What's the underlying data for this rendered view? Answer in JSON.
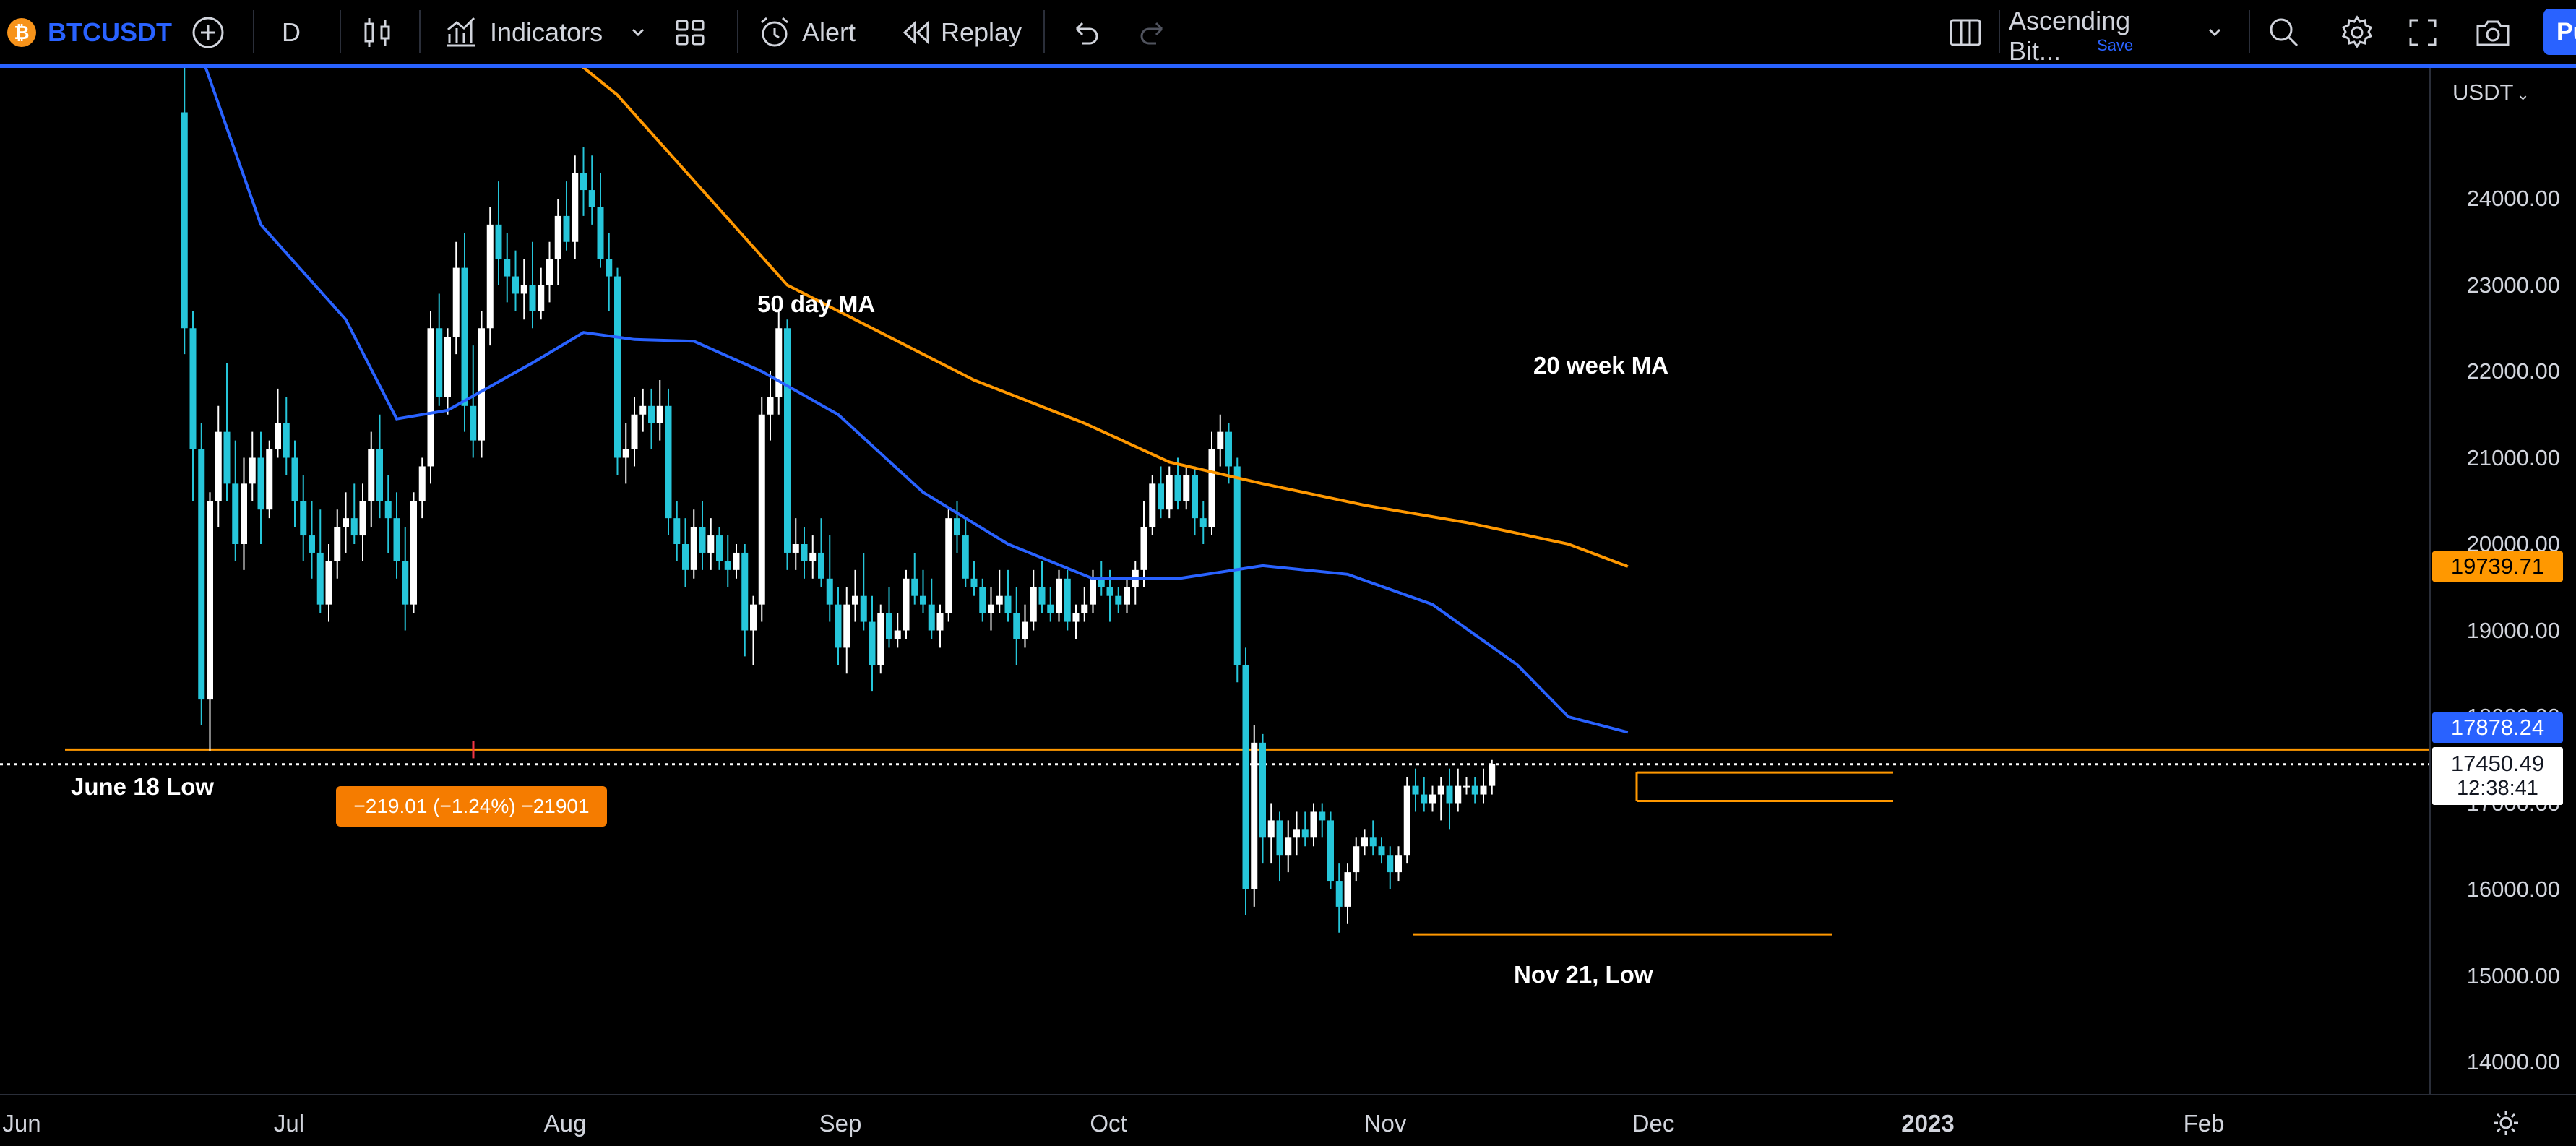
{
  "toolbar": {
    "symbol": "BTCUSDT",
    "interval": "D",
    "indicators_label": "Indicators",
    "alert_label": "Alert",
    "replay_label": "Replay",
    "layout_name": "Ascending Bit...",
    "layout_save": "Save",
    "publish_label": "Pu"
  },
  "price_axis": {
    "currency": "USDT",
    "labels": [
      "24000.00",
      "23000.00",
      "22000.00",
      "21000.00",
      "20000.00",
      "19000.00",
      "18000.00",
      "17000.00",
      "16000.00",
      "15000.00",
      "14000.00"
    ],
    "label_values": [
      24000,
      23000,
      22000,
      21000,
      20000,
      19000,
      18000,
      17000,
      16000,
      15000,
      14000
    ]
  },
  "badges": {
    "ma20_value": "19739.71",
    "ma50_value": "17878.24",
    "last_price": "17450.49",
    "countdown": "12:38:41"
  },
  "time_axis": {
    "labels": [
      "Jun",
      "Jul",
      "Aug",
      "Sep",
      "Oct",
      "Nov",
      "Dec",
      "2023",
      "Feb"
    ]
  },
  "annotations": {
    "ma50": "50 day MA",
    "ma20w": "20 week MA",
    "june_low": "June 18 Low",
    "nov_low": "Nov 21, Low",
    "measure": "−219.01 (−1.24%) −21901"
  },
  "colors": {
    "up": "#ffffff",
    "down": "#26c6da",
    "ma50": "#2962ff",
    "ma20w": "#ff9800",
    "accent": "#2962ff",
    "hline": "#ff9800"
  },
  "chart_data": {
    "type": "candlestick",
    "symbol": "BTCUSDT",
    "interval": "D",
    "ylim": [
      13600,
      25200
    ],
    "x_range": [
      "2022-06-01",
      "2023-02-28"
    ],
    "horizontal_levels": [
      {
        "label": "June 18 Low",
        "value": 17620
      },
      {
        "label": "Nov 21, Low",
        "value": 15480
      }
    ],
    "consolidation_box": {
      "top": 17355,
      "bottom": 17025
    },
    "ma50_points": [
      [
        18,
        26500
      ],
      [
        28,
        23700
      ],
      [
        38,
        22600
      ],
      [
        44,
        21450
      ],
      [
        50,
        21550
      ],
      [
        60,
        22100
      ],
      [
        66,
        22450
      ],
      [
        72,
        22370
      ],
      [
        79,
        22350
      ],
      [
        87,
        22000
      ],
      [
        96,
        21500
      ],
      [
        106,
        20600
      ],
      [
        116,
        20000
      ],
      [
        126,
        19600
      ],
      [
        136,
        19600
      ],
      [
        146,
        19750
      ],
      [
        156,
        19650
      ],
      [
        166,
        19300
      ],
      [
        176,
        18600
      ],
      [
        182,
        18000
      ],
      [
        189,
        17820
      ]
    ],
    "ma20w_points": [
      [
        60,
        26000
      ],
      [
        70,
        25200
      ],
      [
        80,
        24100
      ],
      [
        90,
        23000
      ],
      [
        100,
        22500
      ],
      [
        112,
        21900
      ],
      [
        125,
        21400
      ],
      [
        135,
        20950
      ],
      [
        146,
        20700
      ],
      [
        158,
        20450
      ],
      [
        170,
        20250
      ],
      [
        182,
        20000
      ],
      [
        189,
        19740
      ]
    ],
    "candles": [
      [
        19,
        25000,
        26200,
        22200,
        22500
      ],
      [
        20,
        22500,
        22700,
        20500,
        21100
      ],
      [
        21,
        21100,
        21400,
        17900,
        18200
      ],
      [
        22,
        18200,
        20600,
        17600,
        20500
      ],
      [
        23,
        20500,
        21600,
        20200,
        21300
      ],
      [
        24,
        21300,
        22100,
        20500,
        20700
      ],
      [
        25,
        20700,
        21200,
        19800,
        20000
      ],
      [
        26,
        20000,
        21000,
        19700,
        20700
      ],
      [
        27,
        20700,
        21300,
        20500,
        21000
      ],
      [
        28,
        21000,
        21300,
        20000,
        20400
      ],
      [
        29,
        20400,
        21200,
        20300,
        21100
      ],
      [
        30,
        21100,
        21800,
        21000,
        21400
      ],
      [
        31,
        21400,
        21700,
        20800,
        21000
      ],
      [
        32,
        21000,
        21200,
        20200,
        20500
      ],
      [
        33,
        20500,
        20800,
        19800,
        20100
      ],
      [
        34,
        20100,
        20500,
        19600,
        19900
      ],
      [
        35,
        19900,
        20400,
        19200,
        19300
      ],
      [
        36,
        19300,
        20000,
        19100,
        19800
      ],
      [
        37,
        19800,
        20400,
        19600,
        20200
      ],
      [
        38,
        20200,
        20600,
        19900,
        20300
      ],
      [
        39,
        20300,
        20700,
        20000,
        20100
      ],
      [
        40,
        20100,
        20700,
        19800,
        20500
      ],
      [
        41,
        20500,
        21300,
        20200,
        21100
      ],
      [
        42,
        21100,
        21500,
        20300,
        20500
      ],
      [
        43,
        20500,
        20800,
        19900,
        20300
      ],
      [
        44,
        20300,
        20600,
        19600,
        19800
      ],
      [
        45,
        19800,
        20200,
        19000,
        19300
      ],
      [
        46,
        19300,
        20600,
        19200,
        20500
      ],
      [
        47,
        20500,
        21000,
        20300,
        20900
      ],
      [
        48,
        20900,
        22700,
        20700,
        22500
      ],
      [
        49,
        22500,
        22900,
        21600,
        21700
      ],
      [
        50,
        21700,
        22500,
        21500,
        22400
      ],
      [
        51,
        22400,
        23500,
        22200,
        23200
      ],
      [
        52,
        23200,
        23600,
        21300,
        21600
      ],
      [
        53,
        21600,
        22300,
        21000,
        21200
      ],
      [
        54,
        21200,
        22700,
        21000,
        22500
      ],
      [
        55,
        22500,
        23900,
        22300,
        23700
      ],
      [
        56,
        23700,
        24200,
        23000,
        23300
      ],
      [
        57,
        23300,
        23600,
        22800,
        23100
      ],
      [
        58,
        23100,
        23400,
        22700,
        22900
      ],
      [
        59,
        22900,
        23300,
        22600,
        23000
      ],
      [
        60,
        23000,
        23500,
        22500,
        22700
      ],
      [
        61,
        22700,
        23200,
        22600,
        23000
      ],
      [
        62,
        23000,
        23500,
        22800,
        23300
      ],
      [
        63,
        23300,
        24000,
        23000,
        23800
      ],
      [
        64,
        23800,
        24200,
        23400,
        23500
      ],
      [
        65,
        23500,
        24500,
        23300,
        24300
      ],
      [
        66,
        24300,
        24600,
        23800,
        24100
      ],
      [
        67,
        24100,
        24500,
        23700,
        23900
      ],
      [
        68,
        23900,
        24300,
        23200,
        23300
      ],
      [
        69,
        23300,
        23600,
        22700,
        23100
      ],
      [
        70,
        23100,
        23200,
        20800,
        21000
      ],
      [
        71,
        21000,
        21400,
        20700,
        21100
      ],
      [
        72,
        21100,
        21700,
        20900,
        21500
      ],
      [
        73,
        21500,
        21800,
        21300,
        21600
      ],
      [
        74,
        21600,
        21800,
        21100,
        21400
      ],
      [
        75,
        21400,
        21900,
        21200,
        21600
      ],
      [
        76,
        21600,
        21800,
        20100,
        20300
      ],
      [
        77,
        20300,
        20500,
        19800,
        20000
      ],
      [
        78,
        20000,
        20300,
        19500,
        19700
      ],
      [
        79,
        19700,
        20400,
        19600,
        20200
      ],
      [
        80,
        20200,
        20500,
        19700,
        19900
      ],
      [
        81,
        19900,
        20300,
        19700,
        20100
      ],
      [
        82,
        20100,
        20200,
        19700,
        19800
      ],
      [
        83,
        19800,
        20100,
        19500,
        19700
      ],
      [
        84,
        19700,
        20000,
        19600,
        19900
      ],
      [
        85,
        19900,
        20000,
        18700,
        19000
      ],
      [
        86,
        19000,
        19400,
        18600,
        19300
      ],
      [
        87,
        19300,
        21700,
        19100,
        21500
      ],
      [
        88,
        21500,
        22000,
        21200,
        21700
      ],
      [
        89,
        21700,
        22700,
        21500,
        22500
      ],
      [
        90,
        22500,
        22600,
        19700,
        19900
      ],
      [
        91,
        19900,
        20300,
        19700,
        20000
      ],
      [
        92,
        20000,
        20200,
        19600,
        19800
      ],
      [
        93,
        19800,
        20100,
        19600,
        19900
      ],
      [
        94,
        19900,
        20300,
        19500,
        19600
      ],
      [
        95,
        19600,
        20100,
        19100,
        19300
      ],
      [
        96,
        19300,
        19500,
        18600,
        18800
      ],
      [
        97,
        18800,
        19500,
        18500,
        19300
      ],
      [
        98,
        19300,
        19700,
        19100,
        19400
      ],
      [
        99,
        19400,
        19900,
        19000,
        19100
      ],
      [
        100,
        19100,
        19400,
        18300,
        18600
      ],
      [
        101,
        18600,
        19300,
        18500,
        19200
      ],
      [
        102,
        19200,
        19500,
        18800,
        18900
      ],
      [
        103,
        18900,
        19200,
        18800,
        19000
      ],
      [
        104,
        19000,
        19700,
        18900,
        19600
      ],
      [
        105,
        19600,
        19900,
        19300,
        19400
      ],
      [
        106,
        19400,
        19700,
        19200,
        19300
      ],
      [
        107,
        19300,
        19600,
        18900,
        19000
      ],
      [
        108,
        19000,
        19300,
        18800,
        19200
      ],
      [
        109,
        19200,
        20400,
        19100,
        20300
      ],
      [
        110,
        20300,
        20500,
        19900,
        20100
      ],
      [
        111,
        20100,
        20300,
        19500,
        19600
      ],
      [
        112,
        19600,
        19800,
        19400,
        19500
      ],
      [
        113,
        19500,
        19600,
        19100,
        19200
      ],
      [
        114,
        19200,
        19500,
        19000,
        19300
      ],
      [
        115,
        19300,
        19700,
        19200,
        19400
      ],
      [
        116,
        19400,
        19700,
        19100,
        19200
      ],
      [
        117,
        19200,
        19500,
        18600,
        18900
      ],
      [
        118,
        18900,
        19300,
        18800,
        19100
      ],
      [
        119,
        19100,
        19700,
        19000,
        19500
      ],
      [
        120,
        19500,
        19800,
        19200,
        19300
      ],
      [
        121,
        19300,
        19500,
        19100,
        19200
      ],
      [
        122,
        19200,
        19700,
        19100,
        19600
      ],
      [
        123,
        19600,
        19700,
        19000,
        19100
      ],
      [
        124,
        19100,
        19300,
        18900,
        19200
      ],
      [
        125,
        19200,
        19500,
        19100,
        19300
      ],
      [
        126,
        19300,
        19700,
        19200,
        19600
      ],
      [
        127,
        19600,
        19800,
        19400,
        19500
      ],
      [
        128,
        19500,
        19700,
        19100,
        19400
      ],
      [
        129,
        19400,
        19500,
        19200,
        19300
      ],
      [
        130,
        19300,
        19600,
        19200,
        19500
      ],
      [
        131,
        19500,
        19800,
        19300,
        19700
      ],
      [
        132,
        19700,
        20500,
        19500,
        20200
      ],
      [
        133,
        20200,
        20800,
        20100,
        20700
      ],
      [
        134,
        20700,
        20900,
        20300,
        20400
      ],
      [
        135,
        20400,
        20900,
        20300,
        20800
      ],
      [
        136,
        20800,
        21000,
        20400,
        20500
      ],
      [
        137,
        20500,
        20900,
        20400,
        20800
      ],
      [
        138,
        20800,
        20900,
        20100,
        20300
      ],
      [
        139,
        20300,
        20500,
        20000,
        20200
      ],
      [
        140,
        20200,
        21300,
        20100,
        21100
      ],
      [
        141,
        21100,
        21500,
        20900,
        21300
      ],
      [
        142,
        21300,
        21400,
        20700,
        20900
      ],
      [
        143,
        20900,
        21000,
        18400,
        18600
      ],
      [
        144,
        18600,
        18800,
        15700,
        16000
      ],
      [
        145,
        16000,
        17900,
        15800,
        17700
      ],
      [
        146,
        17700,
        17800,
        16300,
        16600
      ],
      [
        147,
        16600,
        17000,
        16300,
        16800
      ],
      [
        148,
        16800,
        16900,
        16100,
        16400
      ],
      [
        149,
        16400,
        16800,
        16200,
        16600
      ],
      [
        150,
        16600,
        16900,
        16400,
        16700
      ],
      [
        151,
        16700,
        16900,
        16500,
        16600
      ],
      [
        152,
        16600,
        17000,
        16500,
        16900
      ],
      [
        153,
        16900,
        17000,
        16600,
        16800
      ],
      [
        154,
        16800,
        16900,
        16000,
        16100
      ],
      [
        155,
        16100,
        16300,
        15500,
        15800
      ],
      [
        156,
        15800,
        16300,
        15600,
        16200
      ],
      [
        157,
        16200,
        16600,
        16100,
        16500
      ],
      [
        158,
        16500,
        16700,
        16400,
        16600
      ],
      [
        159,
        16600,
        16800,
        16400,
        16500
      ],
      [
        160,
        16500,
        16600,
        16300,
        16400
      ],
      [
        161,
        16400,
        16500,
        16000,
        16200
      ],
      [
        162,
        16200,
        16500,
        16100,
        16400
      ],
      [
        163,
        16400,
        17300,
        16300,
        17200
      ],
      [
        164,
        17200,
        17400,
        16900,
        17100
      ],
      [
        165,
        17100,
        17300,
        16900,
        17000
      ],
      [
        166,
        17000,
        17200,
        16900,
        17100
      ],
      [
        167,
        17100,
        17300,
        16800,
        17200
      ],
      [
        168,
        17200,
        17400,
        16700,
        17000
      ],
      [
        169,
        17000,
        17400,
        16900,
        17200
      ],
      [
        170,
        17200,
        17300,
        17100,
        17200
      ],
      [
        171,
        17200,
        17300,
        17000,
        17100
      ],
      [
        172,
        17100,
        17400,
        17000,
        17200
      ],
      [
        173,
        17200,
        17500,
        17100,
        17450
      ]
    ]
  }
}
